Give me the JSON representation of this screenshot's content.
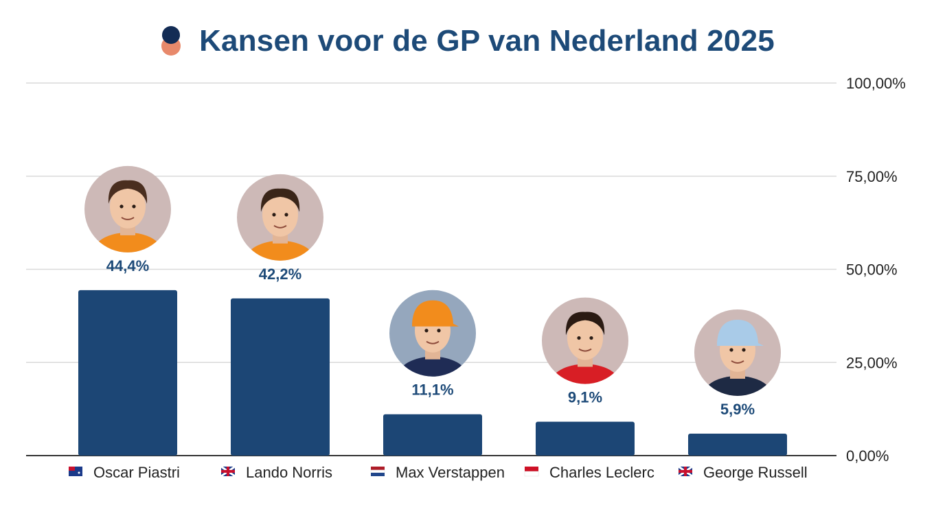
{
  "chart_data": {
    "type": "bar",
    "title": "Kansen voor de GP van Nederland 2025",
    "categories": [
      "Oscar Piastri",
      "Lando Norris",
      "Max Verstappen",
      "Charles Leclerc",
      "George Russell"
    ],
    "values": [
      44.4,
      42.2,
      11.1,
      9.1,
      5.9
    ],
    "data_labels": [
      "44,4%",
      "42,2%",
      "11,1%",
      "9,1%",
      "5,9%"
    ],
    "flags": [
      "australia-flag",
      "uk-flag",
      "netherlands-flag",
      "monaco-flag",
      "uk-flag"
    ],
    "avatar_icons": [
      "oscar-piastri-photo",
      "lando-norris-photo",
      "max-verstappen-photo",
      "charles-leclerc-photo",
      "george-russell-photo"
    ],
    "ylim": [
      0,
      100
    ],
    "yticks": [
      0,
      25,
      50,
      75,
      100
    ],
    "ytick_labels": [
      "0,00%",
      "25,00%",
      "50,00%",
      "75,00%",
      "100,00%"
    ],
    "y_axis_side": "right",
    "grid": true,
    "xlabel": "",
    "ylabel": "",
    "colors": {
      "bar": "#1c4675",
      "label": "#1d4a78",
      "grid": "#d9d9d9",
      "axis": "#333333",
      "avatar_bg": "#cdb9b7",
      "avatar_bg_alt": "#95a7bd"
    }
  }
}
